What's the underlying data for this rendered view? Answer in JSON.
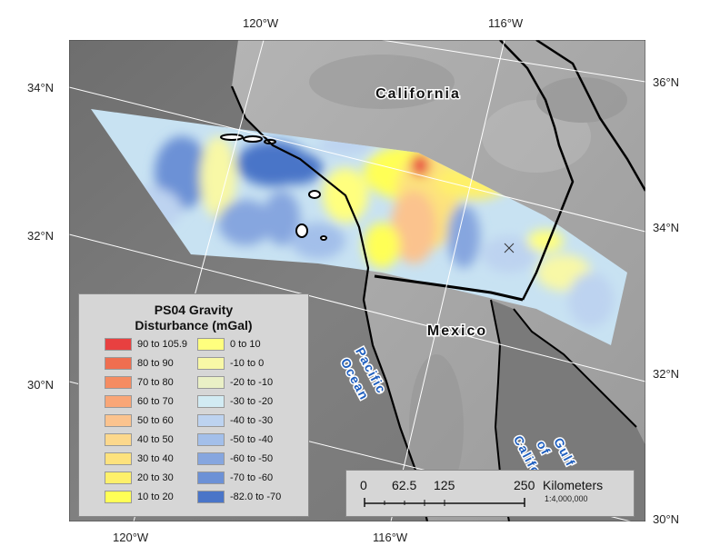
{
  "graticule": {
    "top": [
      "120°W",
      "116°W"
    ],
    "bottom": [
      "120°W",
      "116°W"
    ],
    "left": [
      "34°N",
      "32°N",
      "30°N"
    ],
    "right": [
      "36°N",
      "34°N",
      "32°N",
      "30°N"
    ]
  },
  "labels": {
    "california": "California",
    "mexico": "Mexico",
    "pacific_1": "Pacific",
    "pacific_2": "Ocean",
    "gulf_1": "Gulf",
    "gulf_2": "of",
    "gulf_3": "California"
  },
  "legend": {
    "title_1": "PS04 Gravity",
    "title_2": "Disturbance (mGal)",
    "items": [
      {
        "label": "90 to 105.9",
        "color": "#e84040"
      },
      {
        "label": "80 to 90",
        "color": "#ef6e50"
      },
      {
        "label": "70 to 80",
        "color": "#f58c62"
      },
      {
        "label": "60 to 70",
        "color": "#f9a677"
      },
      {
        "label": "50 to 60",
        "color": "#fbc38e"
      },
      {
        "label": "40 to 50",
        "color": "#fcd88c"
      },
      {
        "label": "30 to 40",
        "color": "#fde27d"
      },
      {
        "label": "20 to 30",
        "color": "#fef06a"
      },
      {
        "label": "10 to 20",
        "color": "#ffff56"
      },
      {
        "label": "0 to 10",
        "color": "#ffff7e"
      },
      {
        "label": "-10 to 0",
        "color": "#f8f8a6"
      },
      {
        "label": "-20 to -10",
        "color": "#eaf0c6"
      },
      {
        "label": "-30 to -20",
        "color": "#d2ebf3"
      },
      {
        "label": "-40 to -30",
        "color": "#bdd3f0"
      },
      {
        "label": "-50 to -40",
        "color": "#a3bfea"
      },
      {
        "label": "-60 to -50",
        "color": "#86a6df"
      },
      {
        "label": "-70 to -60",
        "color": "#6c91d6"
      },
      {
        "label": "-82.0 to -70",
        "color": "#4a75c8"
      }
    ]
  },
  "scale": {
    "ticks": [
      "0",
      "62.5",
      "125",
      "250"
    ],
    "unit": "Kilometers",
    "ratio": "1:4,000,000"
  }
}
